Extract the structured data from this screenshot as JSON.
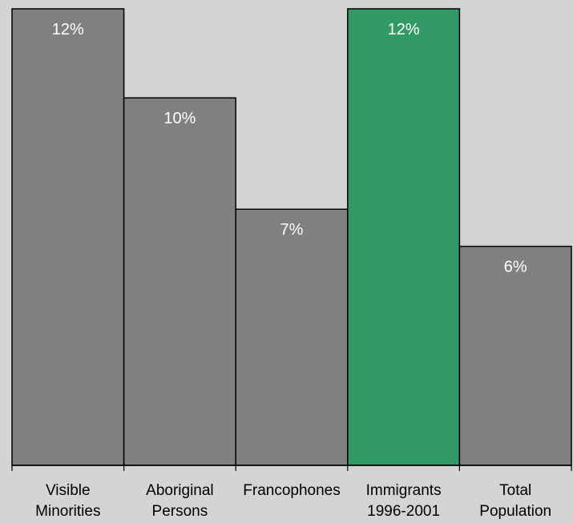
{
  "chart_data": {
    "type": "bar",
    "title": "",
    "xlabel": "",
    "ylabel": "",
    "categories": [
      [
        "Visible",
        "Minorities"
      ],
      [
        "Aboriginal",
        "Persons"
      ],
      [
        "Francophones"
      ],
      [
        "Immigrants",
        "1996-2001"
      ],
      [
        "Total",
        "Population"
      ]
    ],
    "values": [
      12.3,
      9.9,
      6.9,
      12.3,
      5.9
    ],
    "data_labels": [
      "12%",
      "10%",
      "7%",
      "12%",
      "6%"
    ],
    "ylim": [
      0,
      12.3
    ],
    "grid": false,
    "legend": "none",
    "colors": {
      "background": "#d4d4d4",
      "bar_default": "#808080",
      "bar_highlight": "#339966",
      "highlight_index": 3,
      "label_text": "#ffffff",
      "axis_text": "#000000"
    }
  }
}
